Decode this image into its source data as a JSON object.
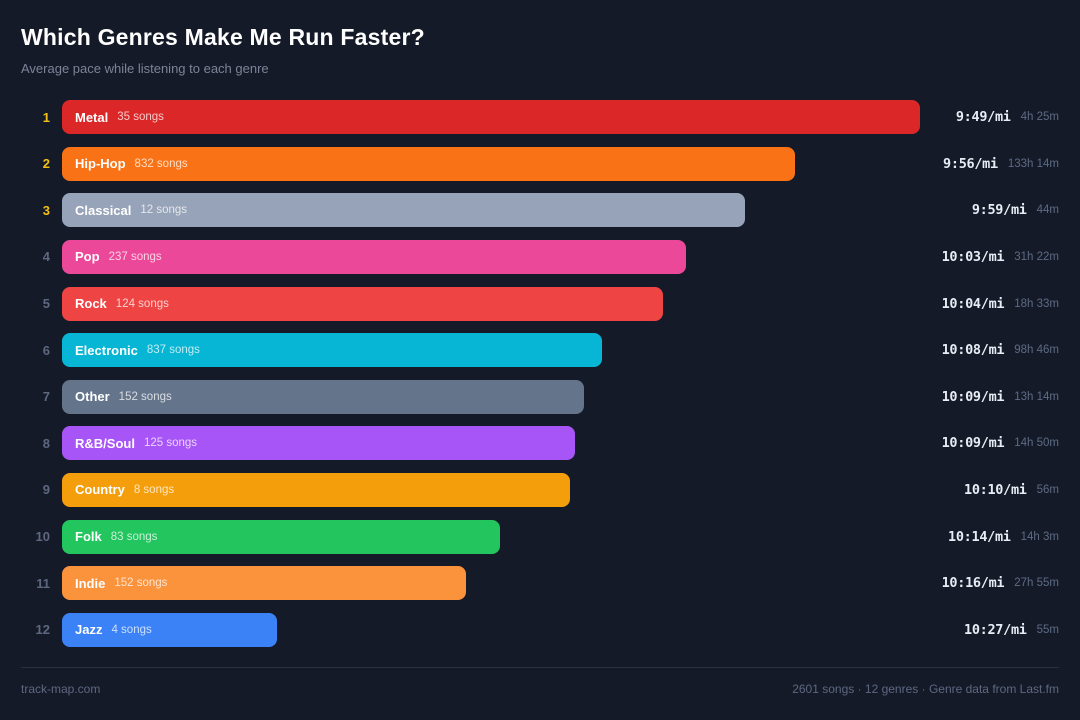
{
  "header": {
    "title": "Which Genres Make Me Run Faster?",
    "subtitle": "Average pace while listening to each genre"
  },
  "chart_data": {
    "type": "bar",
    "orientation": "horizontal",
    "value_meaning": "average running pace per genre; bar length scales with relative speed (faster pace = longer bar)",
    "rows": [
      {
        "rank": "1",
        "top3": true,
        "genre": "Metal",
        "songs": "35 songs",
        "pace": "9:49/mi",
        "duration": "4h 25m",
        "color": "#DB2727",
        "width_pct": 100
      },
      {
        "rank": "2",
        "top3": true,
        "genre": "Hip-Hop",
        "songs": "832 songs",
        "pace": "9:56/mi",
        "duration": "133h 14m",
        "color": "#F97316",
        "width_pct": 85.4
      },
      {
        "rank": "3",
        "top3": true,
        "genre": "Classical",
        "songs": "12 songs",
        "pace": "9:59/mi",
        "duration": "44m",
        "color": "#97A3B8",
        "width_pct": 79.6
      },
      {
        "rank": "4",
        "top3": false,
        "genre": "Pop",
        "songs": "237 songs",
        "pace": "10:03/mi",
        "duration": "31h 22m",
        "color": "#EC4899",
        "width_pct": 72.7
      },
      {
        "rank": "5",
        "top3": false,
        "genre": "Rock",
        "songs": "124 songs",
        "pace": "10:04/mi",
        "duration": "18h 33m",
        "color": "#EF4444",
        "width_pct": 70.0
      },
      {
        "rank": "6",
        "top3": false,
        "genre": "Electronic",
        "songs": "837 songs",
        "pace": "10:08/mi",
        "duration": "98h 46m",
        "color": "#06B6D4",
        "width_pct": 62.9
      },
      {
        "rank": "7",
        "top3": false,
        "genre": "Other",
        "songs": "152 songs",
        "pace": "10:09/mi",
        "duration": "13h 14m",
        "color": "#64748B",
        "width_pct": 60.8
      },
      {
        "rank": "8",
        "top3": false,
        "genre": "R&B/Soul",
        "songs": "125 songs",
        "pace": "10:09/mi",
        "duration": "14h 50m",
        "color": "#A855F7",
        "width_pct": 59.8
      },
      {
        "rank": "9",
        "top3": false,
        "genre": "Country",
        "songs": "8 songs",
        "pace": "10:10/mi",
        "duration": "56m",
        "color": "#F59E0B",
        "width_pct": 59.2
      },
      {
        "rank": "10",
        "top3": false,
        "genre": "Folk",
        "songs": "83 songs",
        "pace": "10:14/mi",
        "duration": "14h 3m",
        "color": "#22C55E",
        "width_pct": 51.0
      },
      {
        "rank": "11",
        "top3": false,
        "genre": "Indie",
        "songs": "152 songs",
        "pace": "10:16/mi",
        "duration": "27h 55m",
        "color": "#FB923C",
        "width_pct": 47.1
      },
      {
        "rank": "12",
        "top3": false,
        "genre": "Jazz",
        "songs": "4 songs",
        "pace": "10:27/mi",
        "duration": "55m",
        "color": "#3B82F6",
        "width_pct": 25.1
      }
    ]
  },
  "footer": {
    "left": "track-map.com",
    "right": "2601 songs · 12 genres · Genre data from Last.fm"
  },
  "colors": {
    "background": "#151A28",
    "rank_top3": "#F2C118",
    "rank_default": "#5D6880",
    "pace_text": "#E8ECF4",
    "duration_text": "#5D6B85",
    "divider": "#283245"
  }
}
